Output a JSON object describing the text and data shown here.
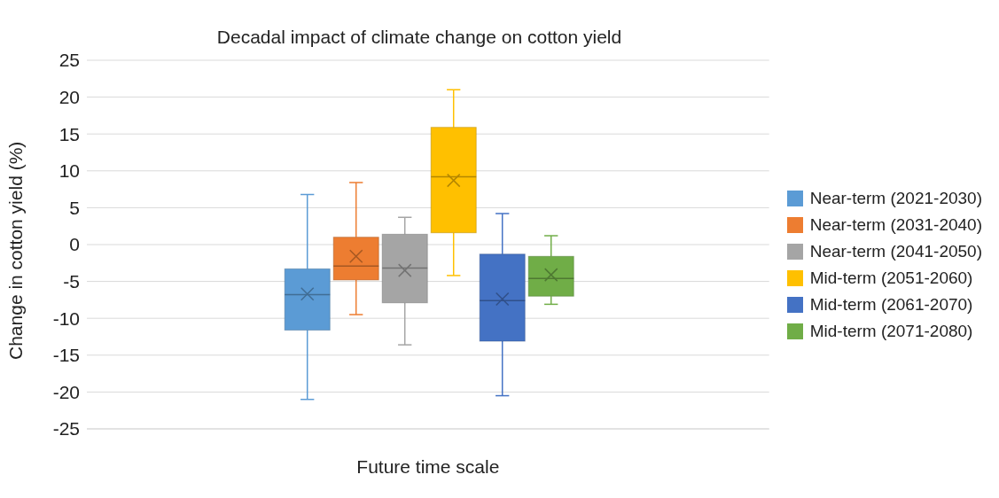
{
  "chart_data": {
    "type": "box",
    "title": "Decadal impact of climate change on cotton yield",
    "xlabel": "Future time scale",
    "ylabel": "Change in cotton yield (%)",
    "categories": [
      null
    ],
    "ylim": [
      -25,
      25
    ],
    "yticks": [
      -25,
      -20,
      -15,
      -10,
      -5,
      0,
      5,
      10,
      15,
      20,
      25
    ],
    "grid": "y",
    "legend": "right",
    "series": [
      {
        "name": "Near-term (2021-2030)",
        "color": "#5b9bd5",
        "boxes": [
          {
            "low": -21,
            "q1": -11.6,
            "median": -6.8,
            "q3": -3.3,
            "high": 6.8,
            "mean": -6.7
          }
        ]
      },
      {
        "name": "Near-term (2031-2040)",
        "color": "#ed7d31",
        "boxes": [
          {
            "low": -9.5,
            "q1": -4.8,
            "median": -2.9,
            "q3": 1,
            "high": 8.4,
            "mean": -1.6
          }
        ]
      },
      {
        "name": "Near-term (2041-2050)",
        "color": "#a5a5a5",
        "boxes": [
          {
            "low": -13.6,
            "q1": -7.9,
            "median": -3.2,
            "q3": 1.4,
            "high": 3.7,
            "mean": -3.5
          }
        ]
      },
      {
        "name": "Mid-term (2051-2060)",
        "color": "#ffc000",
        "boxes": [
          {
            "low": -4.2,
            "q1": 1.6,
            "median": 9.2,
            "q3": 15.9,
            "high": 21,
            "mean": 8.7
          }
        ]
      },
      {
        "name": "Mid-term (2061-2070)",
        "color": "#4472c4",
        "boxes": [
          {
            "low": -20.5,
            "q1": -13.1,
            "median": -7.6,
            "q3": -1.3,
            "high": 4.2,
            "mean": -7.4
          }
        ]
      },
      {
        "name": "Mid-term (2071-2080)",
        "color": "#70ad47",
        "boxes": [
          {
            "low": -8.1,
            "q1": -7,
            "median": -4.6,
            "q3": -1.6,
            "high": 1.2,
            "mean": -4.1
          }
        ]
      }
    ]
  }
}
